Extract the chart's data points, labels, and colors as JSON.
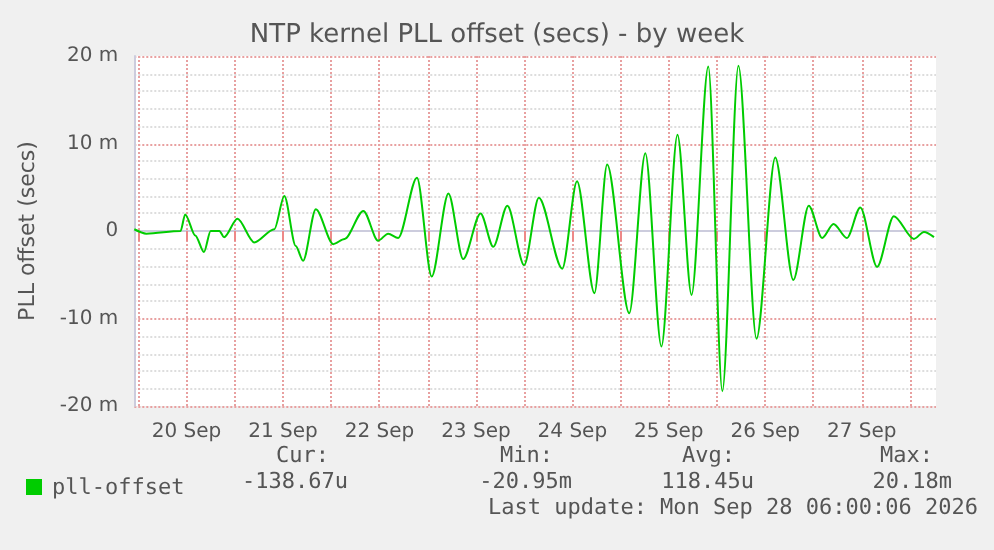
{
  "chart_data": {
    "type": "line",
    "title": "NTP kernel PLL offset (secs) - by week",
    "ylabel": "PLL offset (secs)",
    "x": [
      "2026-09-19T23:00",
      "2026-09-20T02:00",
      "2026-09-20T10:30",
      "2026-09-20T11:40",
      "2026-09-20T14:10",
      "2026-09-20T16:20",
      "2026-09-20T18:00",
      "2026-09-20T20:10",
      "2026-09-20T21:20",
      "2026-09-21T00:40",
      "2026-09-21T04:50",
      "2026-09-21T09:50",
      "2026-09-21T12:20",
      "2026-09-21T15:10",
      "2026-09-21T17:00",
      "2026-09-21T20:10",
      "2026-09-22T00:30",
      "2026-09-22T03:20",
      "2026-09-22T08:00",
      "2026-09-22T11:40",
      "2026-09-22T14:10",
      "2026-09-22T16:40",
      "2026-09-22T21:20",
      "2026-09-23T01:00",
      "2026-09-23T05:10",
      "2026-09-23T08:50",
      "2026-09-23T13:10",
      "2026-09-23T16:20",
      "2026-09-23T19:50",
      "2026-09-24T00:00",
      "2026-09-24T03:40",
      "2026-09-24T09:30",
      "2026-09-24T13:10",
      "2026-09-24T17:30",
      "2026-09-24T20:40",
      "2026-09-25T02:10",
      "2026-09-25T06:10",
      "2026-09-25T10:10",
      "2026-09-25T14:10",
      "2026-09-25T17:40",
      "2026-09-25T21:50",
      "2026-09-26T01:20",
      "2026-09-26T05:20",
      "2026-09-26T09:50",
      "2026-09-26T14:30",
      "2026-09-26T19:00",
      "2026-09-26T22:50",
      "2026-09-27T02:10",
      "2026-09-27T05:00",
      "2026-09-27T08:20",
      "2026-09-27T11:40",
      "2026-09-27T15:50",
      "2026-09-27T20:00",
      "2026-09-28T01:00",
      "2026-09-28T03:30",
      "2026-09-28T06:00"
    ],
    "series": [
      {
        "name": "pll-offset",
        "color": "#00cc00",
        "values": [
          0.2,
          -0.3,
          0,
          1.9,
          -0.5,
          -2.4,
          0,
          0,
          -0.7,
          1.4,
          -1.3,
          0.2,
          4.0,
          -1.7,
          -3.4,
          2.5,
          -1.5,
          -0.9,
          2.3,
          -1.1,
          -0.3,
          -0.8,
          6.1,
          -5.2,
          4.3,
          -3.2,
          2.0,
          -1.8,
          2.9,
          -3.9,
          3.8,
          -4.3,
          5.7,
          -7.1,
          7.6,
          -9.4,
          8.9,
          -13.2,
          11.0,
          -7.3,
          18.8,
          -18.3,
          18.9,
          -12.3,
          8.4,
          -5.6,
          2.9,
          -0.8,
          0.8,
          -0.8,
          2.7,
          -4.1,
          1.7,
          -0.9,
          -0.1,
          -0.7
        ]
      }
    ],
    "xlim": [
      "2026-09-19T23:00",
      "2026-09-28T06:30"
    ],
    "xticks": [
      {
        "value": "2026-09-20T00:00",
        "label": null
      },
      {
        "value": "2026-09-20T12:00",
        "label": "20 Sep"
      },
      {
        "value": "2026-09-21T00:00",
        "label": null
      },
      {
        "value": "2026-09-21T12:00",
        "label": "21 Sep"
      },
      {
        "value": "2026-09-22T00:00",
        "label": null
      },
      {
        "value": "2026-09-22T12:00",
        "label": "22 Sep"
      },
      {
        "value": "2026-09-23T00:00",
        "label": null
      },
      {
        "value": "2026-09-23T12:00",
        "label": "23 Sep"
      },
      {
        "value": "2026-09-24T00:00",
        "label": null
      },
      {
        "value": "2026-09-24T12:00",
        "label": "24 Sep"
      },
      {
        "value": "2026-09-25T00:00",
        "label": null
      },
      {
        "value": "2026-09-25T12:00",
        "label": "25 Sep"
      },
      {
        "value": "2026-09-26T00:00",
        "label": null
      },
      {
        "value": "2026-09-26T12:00",
        "label": "26 Sep"
      },
      {
        "value": "2026-09-27T00:00",
        "label": null
      },
      {
        "value": "2026-09-27T12:00",
        "label": "27 Sep"
      },
      {
        "value": "2026-09-28T00:00",
        "label": null
      }
    ],
    "ylim": [
      -20,
      20
    ],
    "yticks": [
      {
        "value": -20,
        "label": "-20 m"
      },
      {
        "value": -10,
        "label": "-10 m"
      },
      0,
      {
        "value": 10,
        "label": "10 m"
      },
      {
        "value": 20,
        "label": "20 m"
      }
    ],
    "grid": true,
    "legend": "bottom left",
    "marker": "none",
    "line_style": "solid",
    "annotations": [
      "Cur:",
      "Min:",
      "Avg:",
      "Max:",
      "-138.67u",
      "-20.95m",
      "118.45u",
      "20.18m",
      "Last update: Mon Sep 28 06:00:06 2026"
    ]
  }
}
